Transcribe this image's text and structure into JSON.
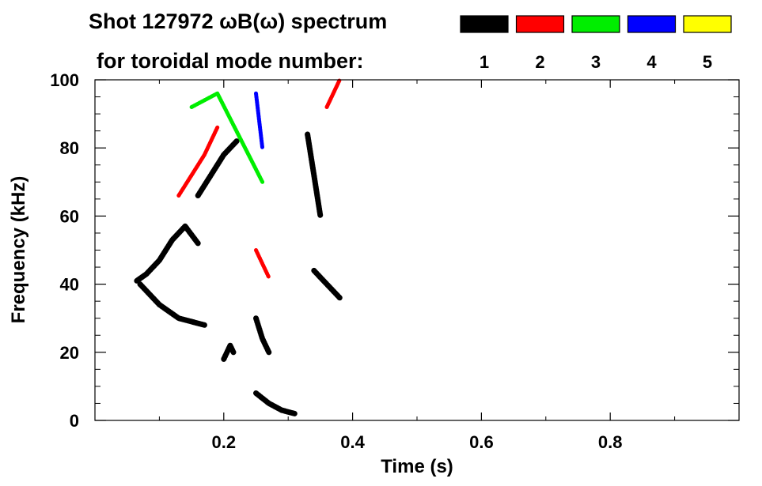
{
  "header": {
    "title": "Shot 127972 ωB(ω) spectrum",
    "subtitle": "for toroidal mode number:"
  },
  "chart_data": {
    "type": "heatmap",
    "title": "Shot 127972 ωB(ω) spectrum",
    "xlabel": "Time (s)",
    "ylabel": "Frequency (kHz)",
    "xlim": [
      0.0,
      1.0
    ],
    "ylim": [
      0,
      100
    ],
    "x_ticks": [
      0.2,
      0.4,
      0.6,
      0.8
    ],
    "x_tick_labels": [
      "0.2",
      "0.4",
      "0.6",
      "0.8"
    ],
    "y_ticks": [
      0,
      20,
      40,
      60,
      80,
      100
    ],
    "y_tick_labels": [
      "0",
      "20",
      "40",
      "60",
      "80",
      "100"
    ],
    "legend_placement": "top",
    "legend": [
      {
        "mode": "1",
        "color": "#000000"
      },
      {
        "mode": "2",
        "color": "#ff0000"
      },
      {
        "mode": "3",
        "color": "#00ee00"
      },
      {
        "mode": "4",
        "color": "#0000ff"
      },
      {
        "mode": "5",
        "color": "#ffff00"
      }
    ],
    "grid": false,
    "features": [
      {
        "mode": "1",
        "t": [
          0.065,
          0.08,
          0.1,
          0.12,
          0.14,
          0.16
        ],
        "f": [
          41,
          43,
          47,
          53,
          57,
          52
        ]
      },
      {
        "mode": "1",
        "t": [
          0.07,
          0.1,
          0.13,
          0.17
        ],
        "f": [
          40,
          34,
          30,
          28
        ]
      },
      {
        "mode": "1",
        "t": [
          0.16,
          0.18,
          0.2,
          0.22
        ],
        "f": [
          66,
          72,
          78,
          82
        ]
      },
      {
        "mode": "1",
        "t": [
          0.2,
          0.21,
          0.215
        ],
        "f": [
          18,
          22,
          20
        ]
      },
      {
        "mode": "1",
        "t": [
          0.25,
          0.27,
          0.29,
          0.31
        ],
        "f": [
          8,
          5,
          3,
          2
        ]
      },
      {
        "mode": "1",
        "t": [
          0.25,
          0.26,
          0.27
        ],
        "f": [
          30,
          24,
          20
        ]
      },
      {
        "mode": "1",
        "t": [
          0.33,
          0.34,
          0.35
        ],
        "f": [
          84,
          72,
          60
        ]
      },
      {
        "mode": "1",
        "t": [
          0.34,
          0.36,
          0.38
        ],
        "f": [
          44,
          40,
          36
        ]
      },
      {
        "mode": "2",
        "t": [
          0.13,
          0.15,
          0.17,
          0.19
        ],
        "f": [
          66,
          72,
          78,
          86
        ]
      },
      {
        "mode": "2",
        "t": [
          0.25,
          0.26,
          0.27
        ],
        "f": [
          50,
          46,
          42
        ]
      },
      {
        "mode": "2",
        "t": [
          0.36,
          0.37,
          0.38
        ],
        "f": [
          92,
          96,
          100
        ]
      },
      {
        "mode": "3",
        "t": [
          0.15,
          0.19,
          0.26
        ],
        "f": [
          92,
          96,
          70
        ]
      },
      {
        "mode": "4",
        "t": [
          0.25,
          0.26
        ],
        "f": [
          96,
          80
        ]
      }
    ]
  }
}
